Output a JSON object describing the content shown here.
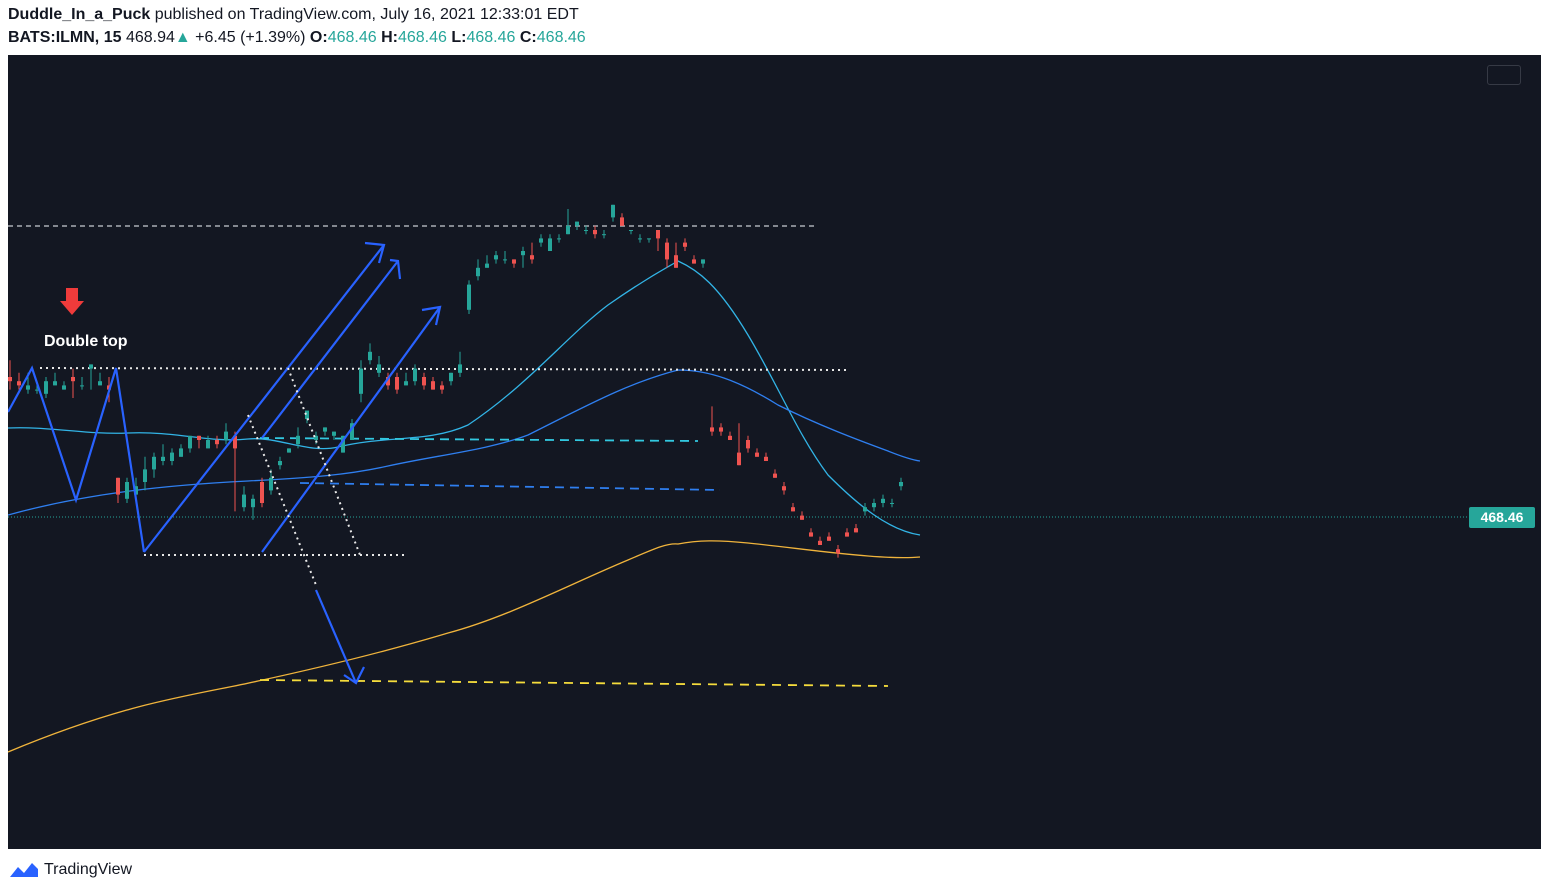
{
  "header": {
    "author": "Duddle_In_a_Puck",
    "published_text": "published on TradingView.com, July 16, 2021 12:33:01 EDT",
    "symbol": "BATS:ILMN, 15",
    "last": "468.94",
    "change": "+6.45 (+1.39%)",
    "o_label": "O:",
    "o_value": "468.46",
    "h_label": "H:",
    "h_value": "468.46",
    "l_label": "L:",
    "l_value": "468.46",
    "c_label": "C:",
    "c_value": "468.46"
  },
  "footer": {
    "brand": "TradingView"
  },
  "colors": {
    "background": "#131722",
    "up": "#26a69a",
    "down": "#ef5350",
    "ma_fast": "#32b4e6",
    "ma_mid": "#2f7ff0",
    "ma_slow": "#f0b43c",
    "pattern": "#2962ff",
    "support": "#f5dc3c"
  },
  "chart_data": {
    "type": "candlestick",
    "symbol": "BATS:ILMN",
    "interval": "15",
    "last_price_label": "468.46",
    "annotations": [
      {
        "text": "Double top",
        "icon": "red-down-arrow-icon"
      }
    ],
    "candles": [
      [
        0,
        0.4,
        0.39,
        0.44,
        0.37
      ],
      [
        2,
        0.39,
        0.38,
        0.41,
        0.37
      ],
      [
        4,
        0.37,
        0.38,
        0.41,
        0.36
      ],
      [
        6,
        0.37,
        0.37,
        0.39,
        0.36
      ],
      [
        8,
        0.36,
        0.39,
        0.4,
        0.35
      ],
      [
        10,
        0.38,
        0.39,
        0.41,
        0.38
      ],
      [
        12,
        0.37,
        0.38,
        0.39,
        0.37
      ],
      [
        14,
        0.4,
        0.39,
        0.42,
        0.35
      ],
      [
        16,
        0.38,
        0.38,
        0.4,
        0.37
      ],
      [
        18,
        0.42,
        0.43,
        0.43,
        0.37
      ],
      [
        20,
        0.38,
        0.39,
        0.41,
        0.38
      ],
      [
        22,
        0.38,
        0.37,
        0.4,
        0.34
      ],
      [
        24,
        0.16,
        0.12,
        0.16,
        0.1
      ],
      [
        26,
        0.11,
        0.15,
        0.16,
        0.1
      ],
      [
        28,
        0.12,
        0.14,
        0.16,
        0.11
      ],
      [
        30,
        0.15,
        0.18,
        0.21,
        0.13
      ],
      [
        32,
        0.18,
        0.21,
        0.22,
        0.16
      ],
      [
        34,
        0.2,
        0.21,
        0.24,
        0.19
      ],
      [
        36,
        0.2,
        0.22,
        0.23,
        0.19
      ],
      [
        38,
        0.21,
        0.23,
        0.24,
        0.21
      ],
      [
        40,
        0.23,
        0.26,
        0.26,
        0.22
      ],
      [
        42,
        0.26,
        0.25,
        0.26,
        0.23
      ],
      [
        44,
        0.23,
        0.25,
        0.26,
        0.23
      ],
      [
        46,
        0.25,
        0.24,
        0.26,
        0.23
      ],
      [
        48,
        0.25,
        0.27,
        0.29,
        0.24
      ],
      [
        50,
        0.26,
        0.23,
        0.27,
        0.08
      ],
      [
        52,
        0.09,
        0.12,
        0.14,
        0.08
      ],
      [
        54,
        0.09,
        0.11,
        0.12,
        0.06
      ],
      [
        56,
        0.15,
        0.1,
        0.16,
        0.09
      ],
      [
        58,
        0.13,
        0.16,
        0.18,
        0.12
      ],
      [
        60,
        0.19,
        0.2,
        0.21,
        0.18
      ],
      [
        62,
        0.22,
        0.23,
        0.23,
        0.22
      ],
      [
        64,
        0.24,
        0.26,
        0.28,
        0.23
      ],
      [
        66,
        0.3,
        0.32,
        0.32,
        0.29
      ],
      [
        68,
        0.25,
        0.26,
        0.27,
        0.24
      ],
      [
        70,
        0.27,
        0.28,
        0.28,
        0.26
      ],
      [
        72,
        0.26,
        0.27,
        0.27,
        0.25
      ],
      [
        74,
        0.22,
        0.26,
        0.26,
        0.22
      ],
      [
        76,
        0.25,
        0.29,
        0.3,
        0.25
      ],
      [
        78,
        0.36,
        0.42,
        0.44,
        0.34
      ],
      [
        80,
        0.44,
        0.46,
        0.48,
        0.43
      ],
      [
        82,
        0.41,
        0.43,
        0.45,
        0.4
      ],
      [
        84,
        0.4,
        0.38,
        0.41,
        0.37
      ],
      [
        86,
        0.4,
        0.37,
        0.41,
        0.36
      ],
      [
        88,
        0.38,
        0.39,
        0.41,
        0.38
      ],
      [
        90,
        0.39,
        0.42,
        0.43,
        0.38
      ],
      [
        92,
        0.4,
        0.38,
        0.41,
        0.37
      ],
      [
        94,
        0.39,
        0.37,
        0.4,
        0.37
      ],
      [
        96,
        0.38,
        0.37,
        0.39,
        0.36
      ],
      [
        98,
        0.39,
        0.41,
        0.41,
        0.38
      ],
      [
        100,
        0.41,
        0.43,
        0.46,
        0.4
      ],
      [
        102,
        0.56,
        0.62,
        0.63,
        0.55
      ],
      [
        104,
        0.64,
        0.66,
        0.68,
        0.63
      ],
      [
        106,
        0.66,
        0.67,
        0.69,
        0.66
      ],
      [
        108,
        0.68,
        0.69,
        0.7,
        0.67
      ],
      [
        110,
        0.68,
        0.68,
        0.7,
        0.67
      ],
      [
        112,
        0.68,
        0.67,
        0.68,
        0.66
      ],
      [
        114,
        0.69,
        0.7,
        0.71,
        0.66
      ],
      [
        116,
        0.69,
        0.68,
        0.72,
        0.67
      ],
      [
        118,
        0.72,
        0.73,
        0.74,
        0.71
      ],
      [
        120,
        0.7,
        0.73,
        0.74,
        0.7
      ],
      [
        122,
        0.73,
        0.73,
        0.74,
        0.72
      ],
      [
        124,
        0.74,
        0.76,
        0.8,
        0.74
      ],
      [
        126,
        0.76,
        0.77,
        0.77,
        0.75
      ],
      [
        128,
        0.75,
        0.75,
        0.76,
        0.74
      ],
      [
        130,
        0.75,
        0.74,
        0.76,
        0.73
      ],
      [
        132,
        0.74,
        0.74,
        0.75,
        0.73
      ],
      [
        134,
        0.78,
        0.81,
        0.81,
        0.77
      ],
      [
        136,
        0.78,
        0.76,
        0.79,
        0.76
      ],
      [
        138,
        0.75,
        0.75,
        0.75,
        0.74
      ],
      [
        140,
        0.73,
        0.73,
        0.74,
        0.72
      ],
      [
        142,
        0.73,
        0.73,
        0.73,
        0.72
      ],
      [
        144,
        0.75,
        0.73,
        0.75,
        0.7
      ],
      [
        146,
        0.72,
        0.68,
        0.73,
        0.66
      ],
      [
        148,
        0.69,
        0.66,
        0.72,
        0.66
      ],
      [
        150,
        0.72,
        0.71,
        0.73,
        0.7
      ],
      [
        152,
        0.68,
        0.67,
        0.69,
        0.67
      ],
      [
        154,
        0.67,
        0.68,
        0.68,
        0.66
      ],
      [
        156,
        0.28,
        0.27,
        0.33,
        0.26
      ],
      [
        158,
        0.28,
        0.27,
        0.29,
        0.26
      ],
      [
        160,
        0.26,
        0.25,
        0.27,
        0.25
      ],
      [
        162,
        0.22,
        0.19,
        0.29,
        0.19
      ],
      [
        164,
        0.25,
        0.23,
        0.26,
        0.22
      ],
      [
        166,
        0.22,
        0.21,
        0.23,
        0.21
      ],
      [
        168,
        0.21,
        0.2,
        0.22,
        0.2
      ],
      [
        170,
        0.17,
        0.16,
        0.18,
        0.16
      ],
      [
        172,
        0.14,
        0.13,
        0.15,
        0.12
      ],
      [
        174,
        0.09,
        0.08,
        0.1,
        0.08
      ],
      [
        176,
        0.07,
        0.06,
        0.08,
        0.06
      ],
      [
        178,
        0.03,
        0.02,
        0.04,
        0.02
      ],
      [
        180,
        0.01,
        0.0,
        0.02,
        0.0
      ],
      [
        182,
        0.02,
        0.01,
        0.03,
        0.01
      ],
      [
        184,
        -0.01,
        -0.02,
        0.0,
        -0.03
      ],
      [
        186,
        0.03,
        0.02,
        0.04,
        0.02
      ],
      [
        188,
        0.04,
        0.03,
        0.05,
        0.03
      ],
      [
        190,
        0.08,
        0.09,
        0.1,
        0.07
      ],
      [
        192,
        0.09,
        0.1,
        0.11,
        0.08
      ],
      [
        194,
        0.1,
        0.11,
        0.12,
        0.09
      ],
      [
        196,
        0.1,
        0.1,
        0.11,
        0.09
      ],
      [
        198,
        0.14,
        0.15,
        0.16,
        0.13
      ]
    ]
  }
}
